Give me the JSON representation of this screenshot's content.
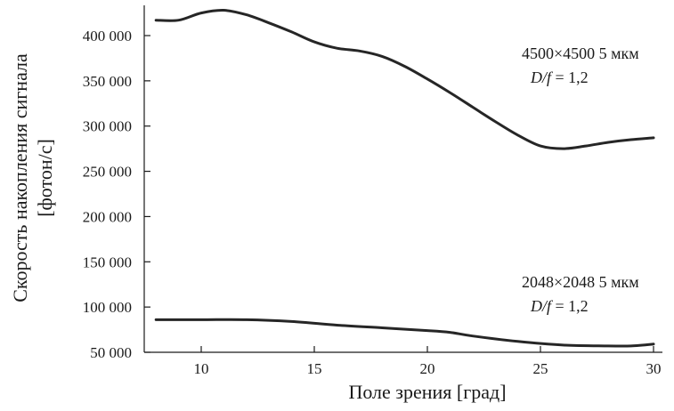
{
  "chart_data": {
    "type": "line",
    "xlabel": "Поле зрения  [град]",
    "ylabel_line1": "Скорость накопления сигнала",
    "ylabel_line2": "[фотон/с]",
    "xlim": [
      8,
      30
    ],
    "ylim": [
      50000,
      430000
    ],
    "x_ticks": [
      10,
      15,
      20,
      25,
      30
    ],
    "x_tick_labels": [
      "10",
      "15",
      "20",
      "25",
      "30"
    ],
    "y_ticks": [
      50000,
      100000,
      150000,
      200000,
      250000,
      300000,
      350000,
      400000
    ],
    "y_tick_labels": [
      "50 000",
      "100 000",
      "150 000",
      "200 000",
      "250 000",
      "300 000",
      "350 000",
      "400 000"
    ],
    "grid": false,
    "series": [
      {
        "key": "upper",
        "x": [
          8,
          9,
          10,
          11,
          12,
          13,
          14,
          15,
          16,
          17,
          18,
          19,
          20,
          21,
          22,
          23,
          24,
          25,
          26,
          27,
          28,
          29,
          30
        ],
        "y": [
          417000,
          417000,
          425000,
          428000,
          423000,
          414000,
          404000,
          393000,
          386000,
          383000,
          377000,
          366000,
          352000,
          337000,
          321000,
          305000,
          290000,
          278000,
          275000,
          278000,
          282000,
          285000,
          287000
        ]
      },
      {
        "key": "lower",
        "x": [
          8,
          10,
          12,
          14,
          16,
          18,
          20,
          21,
          22,
          24,
          26,
          28,
          29,
          30
        ],
        "y": [
          86000,
          86000,
          86000,
          84000,
          80000,
          77000,
          74000,
          72000,
          68000,
          62000,
          58000,
          57000,
          57000,
          59000
        ]
      }
    ],
    "annotations": [
      {
        "key": "upper",
        "line1": "4500×4500  5 мкм",
        "line2_italic": "D/f",
        "line2_rest": " = 1,2"
      },
      {
        "key": "lower",
        "line1": "2048×2048  5 мкм",
        "line2_italic": "D/f",
        "line2_rest": " = 1,2"
      }
    ]
  }
}
